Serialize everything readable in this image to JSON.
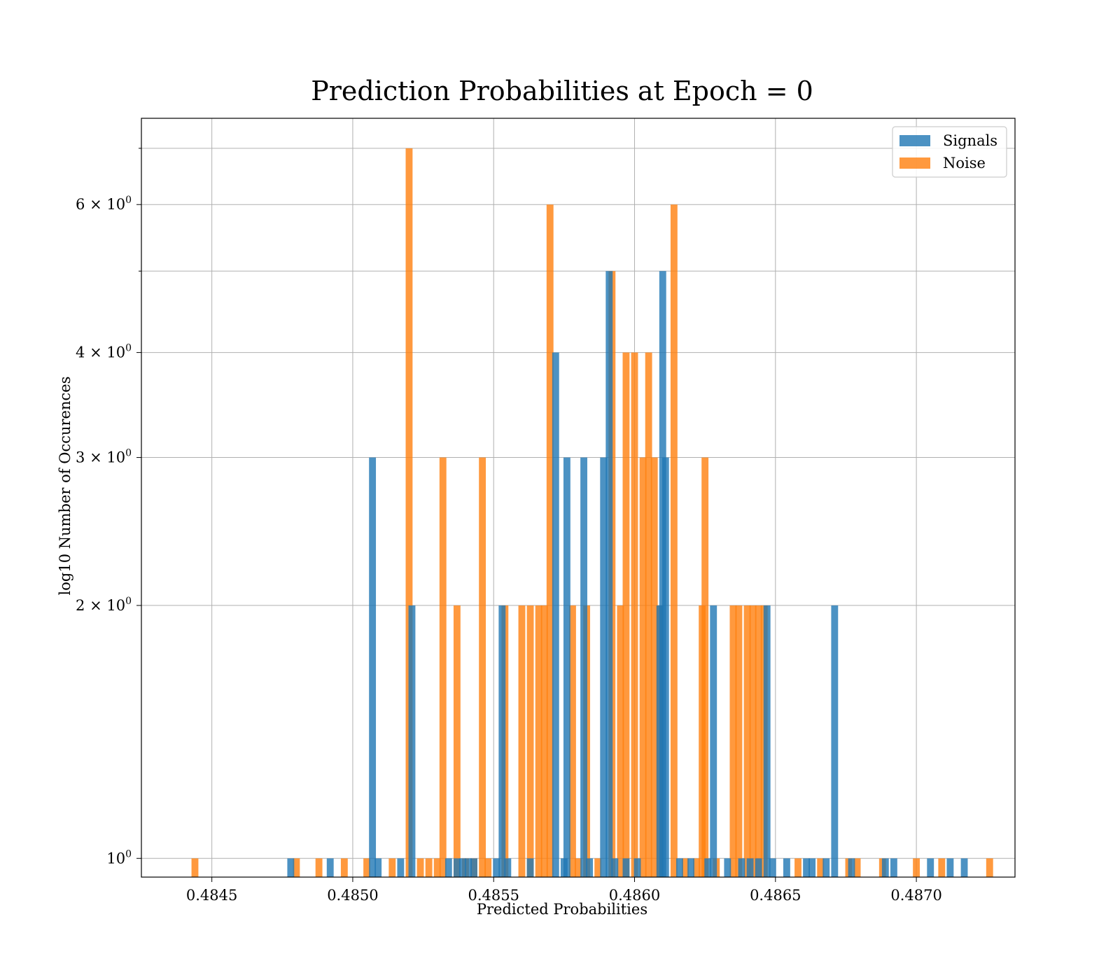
{
  "chart_data": {
    "type": "bar",
    "title": "Prediction Probabilities at Epoch = 0",
    "xlabel": "Predicted Probabilities",
    "ylabel": "log10 Number of Occurences",
    "yscale": "log",
    "xlim": [
      0.48425,
      0.48735
    ],
    "ylim": [
      0.95,
      7.6
    ],
    "bin_width": 2.45e-05,
    "grid": true,
    "legend_placement": "top-right",
    "x_ticks": [
      {
        "value": 0.4845,
        "label": "0.4845"
      },
      {
        "value": 0.485,
        "label": "0.4850"
      },
      {
        "value": 0.4855,
        "label": "0.4855"
      },
      {
        "value": 0.486,
        "label": "0.4860"
      },
      {
        "value": 0.4865,
        "label": "0.4865"
      },
      {
        "value": 0.487,
        "label": "0.4870"
      }
    ],
    "y_ticks": [
      {
        "value": 1,
        "base": "10",
        "exp": "0"
      },
      {
        "value": 2,
        "base": "2 × 10",
        "exp": "0"
      },
      {
        "value": 3,
        "base": "3 × 10",
        "exp": "0"
      },
      {
        "value": 4,
        "base": "4 × 10",
        "exp": "0"
      },
      {
        "value": 6,
        "base": "6 × 10",
        "exp": "0"
      }
    ],
    "y_minor_gridlines": [
      5,
      7
    ],
    "series": [
      {
        "name": "Signals",
        "color": "#1f77b4",
        "bars": [
          [
            0.48478,
            1
          ],
          [
            0.48492,
            1
          ],
          [
            0.48507,
            3
          ],
          [
            0.48509,
            1
          ],
          [
            0.48517,
            1
          ],
          [
            0.48521,
            2
          ],
          [
            0.48534,
            1
          ],
          [
            0.48537,
            1
          ],
          [
            0.48539,
            1
          ],
          [
            0.48541,
            1
          ],
          [
            0.48543,
            1
          ],
          [
            0.48551,
            1
          ],
          [
            0.48553,
            2
          ],
          [
            0.48555,
            1
          ],
          [
            0.48563,
            1
          ],
          [
            0.48572,
            4
          ],
          [
            0.48575,
            1
          ],
          [
            0.48576,
            3
          ],
          [
            0.48582,
            3
          ],
          [
            0.48584,
            1
          ],
          [
            0.48589,
            3
          ],
          [
            0.48591,
            5
          ],
          [
            0.48593,
            1
          ],
          [
            0.48597,
            1
          ],
          [
            0.48601,
            1
          ],
          [
            0.48609,
            2
          ],
          [
            0.4861,
            5
          ],
          [
            0.48611,
            3
          ],
          [
            0.48616,
            1
          ],
          [
            0.4862,
            1
          ],
          [
            0.48626,
            1
          ],
          [
            0.48628,
            2
          ],
          [
            0.48633,
            1
          ],
          [
            0.48638,
            1
          ],
          [
            0.48641,
            1
          ],
          [
            0.48644,
            1
          ],
          [
            0.48647,
            2
          ],
          [
            0.48649,
            1
          ],
          [
            0.48654,
            1
          ],
          [
            0.48661,
            1
          ],
          [
            0.48663,
            1
          ],
          [
            0.48668,
            1
          ],
          [
            0.48671,
            2
          ],
          [
            0.48677,
            1
          ],
          [
            0.48689,
            1
          ],
          [
            0.48692,
            1
          ],
          [
            0.48705,
            1
          ],
          [
            0.48712,
            1
          ],
          [
            0.48717,
            1
          ]
        ]
      },
      {
        "name": "Noise",
        "color": "#ff7f0e",
        "bars": [
          [
            0.48444,
            1
          ],
          [
            0.4848,
            1
          ],
          [
            0.48488,
            1
          ],
          [
            0.48497,
            1
          ],
          [
            0.48505,
            1
          ],
          [
            0.48514,
            1
          ],
          [
            0.4852,
            7
          ],
          [
            0.48524,
            1
          ],
          [
            0.48527,
            1
          ],
          [
            0.4853,
            1
          ],
          [
            0.48532,
            3
          ],
          [
            0.48537,
            2
          ],
          [
            0.4854,
            1
          ],
          [
            0.48543,
            1
          ],
          [
            0.48546,
            3
          ],
          [
            0.48548,
            1
          ],
          [
            0.48554,
            2
          ],
          [
            0.4856,
            2
          ],
          [
            0.48563,
            2
          ],
          [
            0.48566,
            2
          ],
          [
            0.48568,
            2
          ],
          [
            0.4857,
            6
          ],
          [
            0.48578,
            2
          ],
          [
            0.4858,
            1
          ],
          [
            0.48583,
            2
          ],
          [
            0.48587,
            1
          ],
          [
            0.48592,
            5
          ],
          [
            0.48595,
            2
          ],
          [
            0.48597,
            4
          ],
          [
            0.486,
            4
          ],
          [
            0.48603,
            3
          ],
          [
            0.48605,
            4
          ],
          [
            0.48607,
            3
          ],
          [
            0.48609,
            2
          ],
          [
            0.48614,
            6
          ],
          [
            0.48618,
            1
          ],
          [
            0.48622,
            1
          ],
          [
            0.48624,
            2
          ],
          [
            0.48625,
            3
          ],
          [
            0.48629,
            1
          ],
          [
            0.48635,
            2
          ],
          [
            0.48637,
            2
          ],
          [
            0.4864,
            2
          ],
          [
            0.48642,
            2
          ],
          [
            0.48644,
            2
          ],
          [
            0.48646,
            2
          ],
          [
            0.48658,
            1
          ],
          [
            0.48666,
            1
          ],
          [
            0.48676,
            1
          ],
          [
            0.48679,
            1
          ],
          [
            0.48688,
            1
          ],
          [
            0.487,
            1
          ],
          [
            0.48709,
            1
          ],
          [
            0.48726,
            1
          ]
        ]
      }
    ]
  }
}
